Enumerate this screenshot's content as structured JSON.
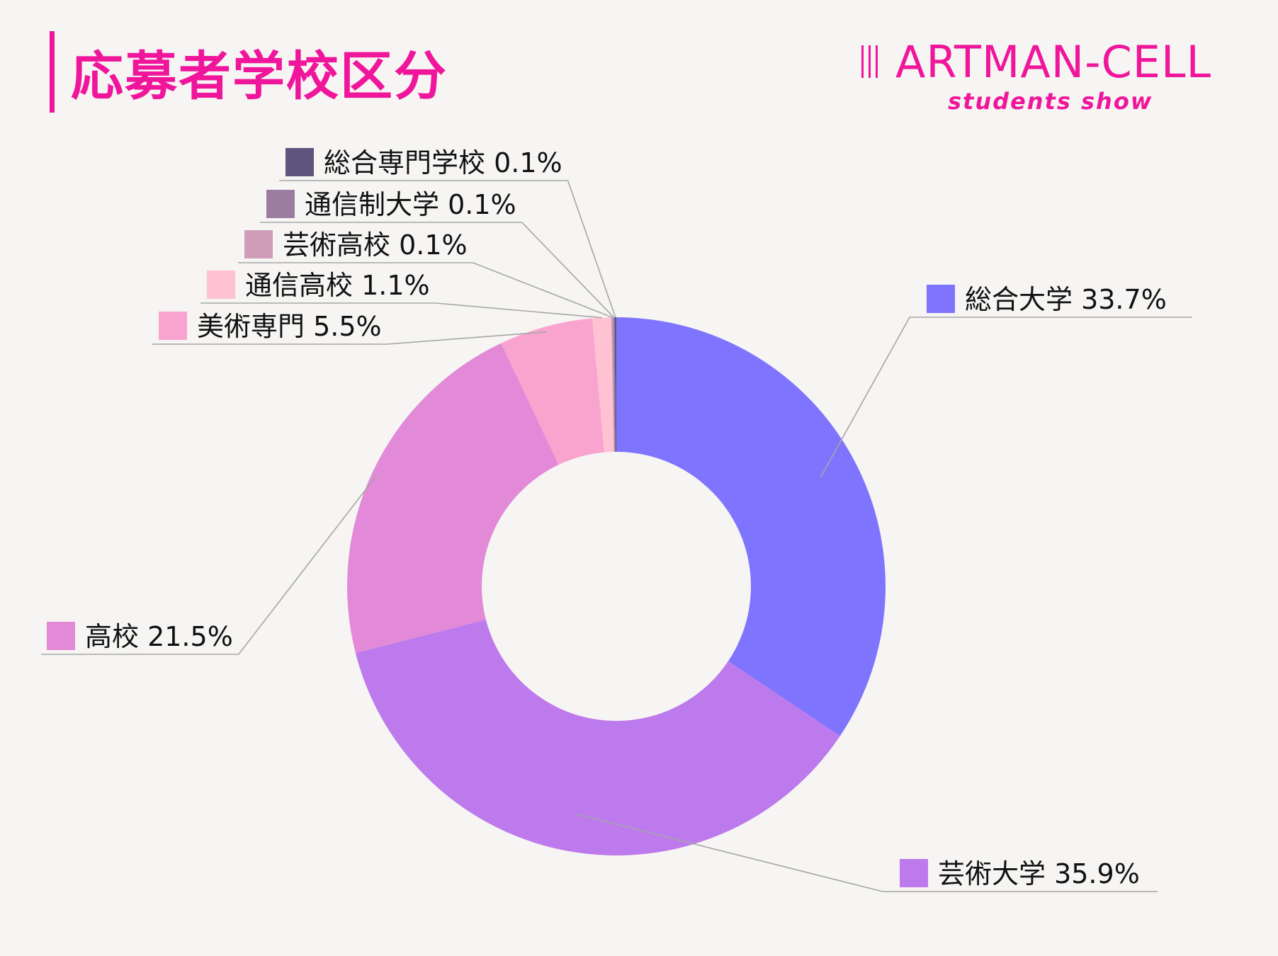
{
  "header": {
    "title": "応募者学校区分"
  },
  "logo": {
    "name": "ARTMAN-CELL",
    "tagline": "students show"
  },
  "chart_data": {
    "type": "pie",
    "donut": true,
    "title": "応募者学校区分",
    "slices": [
      {
        "label": "総合大学",
        "value": 33.7,
        "display": "総合大学 33.7%",
        "color": "#7f74fe"
      },
      {
        "label": "芸術大学",
        "value": 35.9,
        "display": "芸術大学 35.9%",
        "color": "#bd7aec"
      },
      {
        "label": "高校",
        "value": 21.5,
        "display": "高校 21.5%",
        "color": "#e28ad8"
      },
      {
        "label": "美術専門",
        "value": 5.5,
        "display": "美術専門 5.5%",
        "color": "#f9a4cf"
      },
      {
        "label": "通信高校",
        "value": 1.1,
        "display": "通信高校 1.1%",
        "color": "#fec2d2"
      },
      {
        "label": "芸術高校",
        "value": 0.1,
        "display": "芸術高校 0.1%",
        "color": "#cf9dba"
      },
      {
        "label": "通信制大学",
        "value": 0.1,
        "display": "通信制大学 0.1%",
        "color": "#9c7ca0"
      },
      {
        "label": "総合専門学校",
        "value": 0.1,
        "display": "総合専門学校 0.1%",
        "color": "#5e547d"
      }
    ],
    "colors": {
      "title": "#f0169b",
      "leader_line": "#a6a6a6"
    }
  }
}
